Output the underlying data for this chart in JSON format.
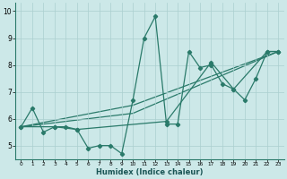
{
  "xlabel": "Humidex (Indice chaleur)",
  "background_color": "#cce8e8",
  "grid_color": "#aacfcf",
  "line_color": "#2a7a6a",
  "xlim": [
    -0.5,
    23.5
  ],
  "ylim": [
    4.5,
    10.3
  ],
  "yticks": [
    5,
    6,
    7,
    8,
    9,
    10
  ],
  "xtick_labels": [
    "0",
    "1",
    "2",
    "3",
    "4",
    "5",
    "6",
    "7",
    "8",
    "9",
    "10",
    "11",
    "12",
    "13",
    "14",
    "15",
    "16",
    "17",
    "18",
    "19",
    "20",
    "21",
    "22",
    "23"
  ],
  "line1_x": [
    0,
    1,
    2,
    3,
    4,
    5,
    6,
    7,
    8,
    9,
    10,
    11,
    12,
    13,
    14,
    15,
    16,
    17,
    18,
    19,
    20,
    21,
    22,
    23
  ],
  "line1_y": [
    5.7,
    6.4,
    5.5,
    5.7,
    5.7,
    5.6,
    4.9,
    5.0,
    5.0,
    4.7,
    6.7,
    9.0,
    9.8,
    5.8,
    5.8,
    8.5,
    7.9,
    8.0,
    7.3,
    7.1,
    6.7,
    7.5,
    8.5,
    8.5
  ],
  "line2_x": [
    0,
    3,
    5,
    13,
    17,
    19,
    22,
    23
  ],
  "line2_y": [
    5.7,
    5.7,
    5.6,
    5.9,
    8.1,
    7.1,
    8.5,
    8.5
  ],
  "line3_x": [
    0,
    10,
    23
  ],
  "line3_y": [
    5.7,
    6.2,
    8.5
  ],
  "line4_x": [
    0,
    10,
    23
  ],
  "line4_y": [
    5.7,
    6.5,
    8.5
  ]
}
